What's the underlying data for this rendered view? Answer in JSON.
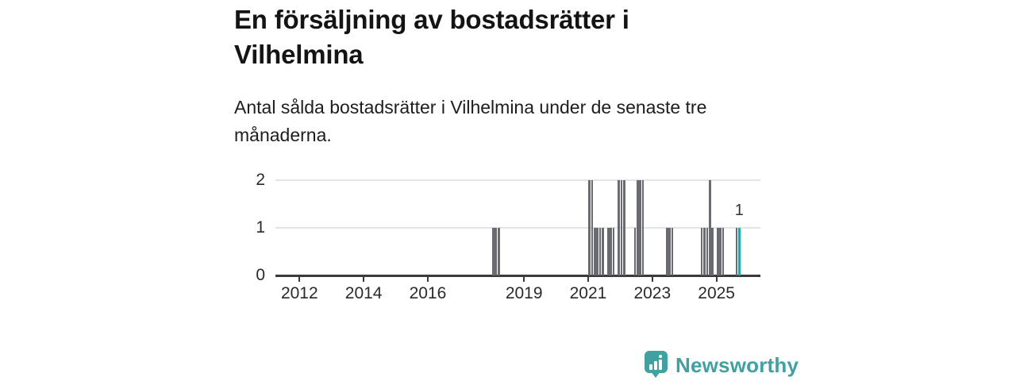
{
  "header": {
    "title": "En försäljning av bostadsrätter i Vilhelmina",
    "subtitle": "Antal sålda bostadsrätter i Vilhelmina under de senaste tre månaderna."
  },
  "chart_data": {
    "type": "bar",
    "title": "En försäljning av bostadsrätter i Vilhelmina",
    "subtitle": "Antal sålda bostadsrätter i Vilhelmina under de senaste tre månaderna.",
    "x_ticks": [
      2012,
      2014,
      2016,
      2019,
      2021,
      2023,
      2025
    ],
    "y_ticks": [
      0,
      1,
      2
    ],
    "ylim": [
      0,
      2
    ],
    "x_domain_years": [
      2011.25,
      2026.37
    ],
    "grid": "horizontal",
    "legend": "none",
    "bar_color": "#6a6a72",
    "highlight_color": "#2ba7a2",
    "annotation": {
      "text": "1",
      "month": "2025-09"
    },
    "series": [
      {
        "month": "2018-01",
        "value": 1
      },
      {
        "month": "2018-02",
        "value": 1
      },
      {
        "month": "2018-03",
        "value": 1
      },
      {
        "month": "2021-01",
        "value": 2
      },
      {
        "month": "2021-02",
        "value": 2
      },
      {
        "month": "2021-03",
        "value": 1
      },
      {
        "month": "2021-04",
        "value": 1
      },
      {
        "month": "2021-05",
        "value": 1
      },
      {
        "month": "2021-06",
        "value": 1
      },
      {
        "month": "2021-08",
        "value": 1
      },
      {
        "month": "2021-09",
        "value": 1
      },
      {
        "month": "2021-10",
        "value": 1
      },
      {
        "month": "2021-12",
        "value": 2
      },
      {
        "month": "2022-01",
        "value": 2
      },
      {
        "month": "2022-02",
        "value": 2
      },
      {
        "month": "2022-06",
        "value": 1
      },
      {
        "month": "2022-07",
        "value": 2
      },
      {
        "month": "2022-08",
        "value": 2
      },
      {
        "month": "2022-09",
        "value": 2
      },
      {
        "month": "2023-06",
        "value": 1
      },
      {
        "month": "2023-07",
        "value": 1
      },
      {
        "month": "2023-08",
        "value": 1
      },
      {
        "month": "2024-07",
        "value": 1
      },
      {
        "month": "2024-08",
        "value": 1
      },
      {
        "month": "2024-09",
        "value": 1
      },
      {
        "month": "2024-10",
        "value": 2
      },
      {
        "month": "2024-11",
        "value": 1
      },
      {
        "month": "2025-01",
        "value": 1
      },
      {
        "month": "2025-02",
        "value": 1
      },
      {
        "month": "2025-03",
        "value": 1
      },
      {
        "month": "2025-08",
        "value": 1
      },
      {
        "month": "2025-09",
        "value": 1,
        "highlight": true
      }
    ]
  },
  "footer": {
    "brand": "Newsworthy",
    "brand_color": "#3fa1a0",
    "logo_icon": "bar-chart-speech-bubble"
  }
}
